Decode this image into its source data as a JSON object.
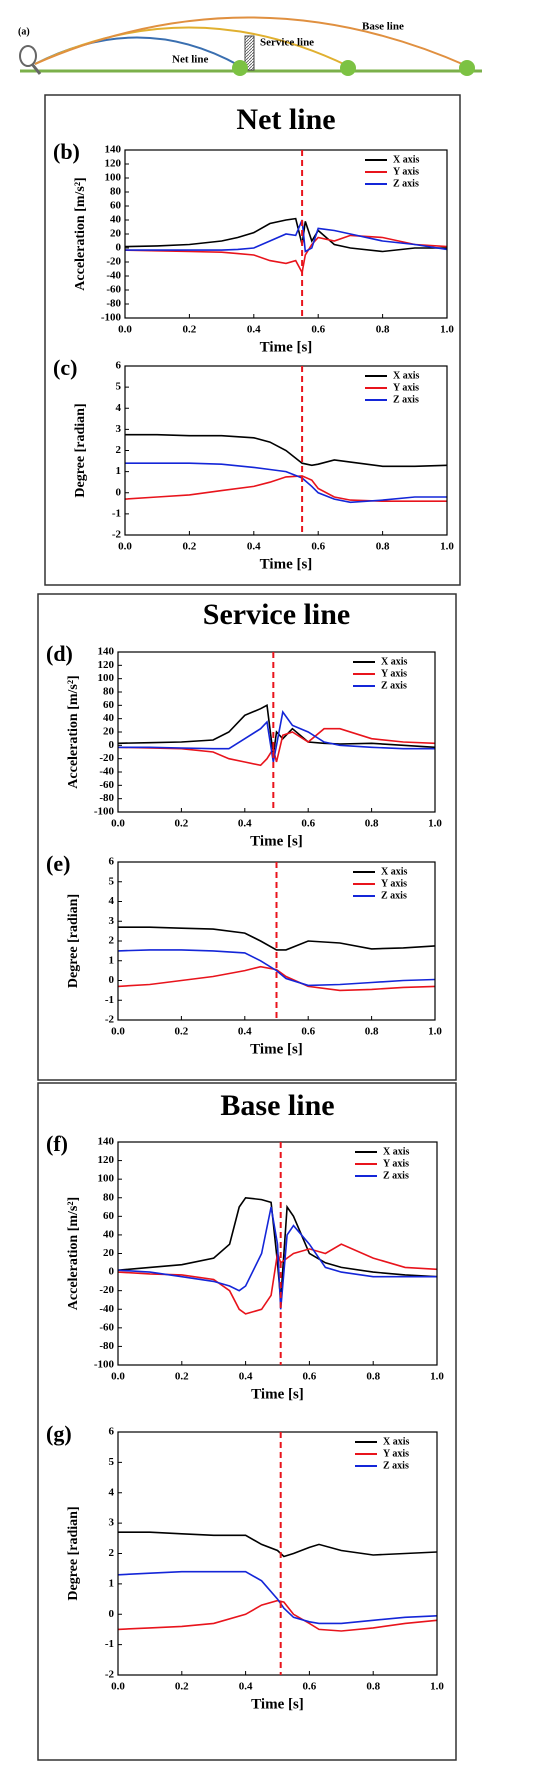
{
  "diagram": {
    "label": "(a)",
    "lines": [
      "Net line",
      "Service line",
      "Base line"
    ]
  },
  "chart_data": [
    {
      "type": "line",
      "title": "Net line",
      "panel_label": "(b)",
      "ylabel": "Acceleration [m/s²]",
      "xlabel": "Time [s]",
      "xlim": [
        0,
        1
      ],
      "xticks": [
        {
          "value": 0,
          "label": "0.0"
        },
        0.2,
        0.4,
        0.6,
        0.8,
        {
          "value": 1,
          "label": "1.0"
        }
      ],
      "ylim": [
        -100,
        140
      ],
      "yticks": [
        -100,
        -80,
        -60,
        -40,
        -20,
        0,
        20,
        40,
        60,
        80,
        100,
        120,
        140
      ],
      "vline_x": 0.55,
      "x": [
        0,
        0.1,
        0.2,
        0.3,
        0.35,
        0.4,
        0.45,
        0.5,
        0.53,
        0.55,
        0.56,
        0.58,
        0.6,
        0.65,
        0.7,
        0.8,
        0.9,
        1.0
      ],
      "series": [
        {
          "name": "X axis",
          "color": "#000000",
          "values": [
            2,
            3,
            5,
            10,
            15,
            22,
            35,
            40,
            42,
            5,
            38,
            10,
            25,
            5,
            0,
            -5,
            0,
            0
          ]
        },
        {
          "name": "Y axis",
          "color": "#e8141c",
          "values": [
            -3,
            -4,
            -5,
            -6,
            -8,
            -10,
            -18,
            -22,
            -18,
            -35,
            -10,
            5,
            15,
            10,
            18,
            15,
            5,
            2
          ]
        },
        {
          "name": "Z axis",
          "color": "#1426d8",
          "values": [
            -3,
            -3,
            -3,
            -3,
            -2,
            0,
            10,
            20,
            18,
            40,
            -5,
            0,
            28,
            25,
            20,
            10,
            5,
            -2
          ]
        }
      ]
    },
    {
      "type": "line",
      "panel_label": "(c)",
      "ylabel": "Degree [radian]",
      "xlabel": "Time [s]",
      "xlim": [
        0,
        1
      ],
      "xticks": [
        {
          "value": 0,
          "label": "0.0"
        },
        0.2,
        0.4,
        0.6,
        0.8,
        {
          "value": 1,
          "label": "1.0"
        }
      ],
      "ylim": [
        -2,
        6
      ],
      "yticks": [
        -2,
        -1,
        0,
        1,
        2,
        3,
        4,
        5,
        6
      ],
      "vline_x": 0.55,
      "x": [
        0,
        0.1,
        0.2,
        0.3,
        0.4,
        0.45,
        0.5,
        0.55,
        0.58,
        0.6,
        0.65,
        0.7,
        0.8,
        0.9,
        1.0
      ],
      "series": [
        {
          "name": "X axis",
          "color": "#000000",
          "values": [
            2.75,
            2.75,
            2.7,
            2.7,
            2.6,
            2.4,
            2.0,
            1.4,
            1.3,
            1.35,
            1.55,
            1.45,
            1.25,
            1.25,
            1.3
          ]
        },
        {
          "name": "Y axis",
          "color": "#e8141c",
          "values": [
            -0.3,
            -0.2,
            -0.1,
            0.1,
            0.3,
            0.5,
            0.75,
            0.8,
            0.6,
            0.2,
            -0.2,
            -0.35,
            -0.4,
            -0.4,
            -0.4
          ]
        },
        {
          "name": "Z axis",
          "color": "#1426d8",
          "values": [
            1.4,
            1.4,
            1.4,
            1.35,
            1.2,
            1.1,
            1.0,
            0.7,
            0.3,
            0.0,
            -0.3,
            -0.45,
            -0.35,
            -0.2,
            -0.2
          ]
        }
      ]
    },
    {
      "type": "line",
      "title": "Service line",
      "panel_label": "(d)",
      "ylabel": "Acceleration [m/s²]",
      "xlabel": "Time [s]",
      "xlim": [
        0,
        1
      ],
      "xticks": [
        {
          "value": 0,
          "label": "0.0"
        },
        0.2,
        0.4,
        0.6,
        0.8,
        {
          "value": 1,
          "label": "1.0"
        }
      ],
      "ylim": [
        -100,
        140
      ],
      "yticks": [
        -100,
        -80,
        -60,
        -40,
        -20,
        0,
        20,
        40,
        60,
        80,
        100,
        120,
        140
      ],
      "vline_x": 0.49,
      "x": [
        0,
        0.1,
        0.2,
        0.3,
        0.35,
        0.4,
        0.45,
        0.47,
        0.49,
        0.5,
        0.52,
        0.55,
        0.6,
        0.65,
        0.7,
        0.8,
        0.9,
        1.0
      ],
      "series": [
        {
          "name": "X axis",
          "color": "#000000",
          "values": [
            3,
            4,
            5,
            8,
            20,
            45,
            55,
            60,
            -15,
            20,
            10,
            25,
            5,
            3,
            2,
            3,
            0,
            -3
          ]
        },
        {
          "name": "Y axis",
          "color": "#e8141c",
          "values": [
            -3,
            -4,
            -5,
            -10,
            -20,
            -25,
            -30,
            -20,
            -5,
            -25,
            15,
            20,
            5,
            25,
            25,
            10,
            5,
            3
          ]
        },
        {
          "name": "Z axis",
          "color": "#1426d8",
          "values": [
            -3,
            -3,
            -4,
            -5,
            -5,
            10,
            25,
            35,
            -25,
            0,
            50,
            30,
            20,
            5,
            0,
            -3,
            -5,
            -5
          ]
        }
      ]
    },
    {
      "type": "line",
      "panel_label": "(e)",
      "ylabel": "Degree [radian]",
      "xlabel": "Time [s]",
      "xlim": [
        0,
        1
      ],
      "xticks": [
        {
          "value": 0,
          "label": "0.0"
        },
        0.2,
        0.4,
        0.6,
        0.8,
        {
          "value": 1,
          "label": "1.0"
        }
      ],
      "ylim": [
        -2,
        6
      ],
      "yticks": [
        -2,
        -1,
        0,
        1,
        2,
        3,
        4,
        5,
        6
      ],
      "vline_x": 0.5,
      "x": [
        0,
        0.1,
        0.2,
        0.3,
        0.4,
        0.45,
        0.5,
        0.53,
        0.6,
        0.7,
        0.8,
        0.9,
        1.0
      ],
      "series": [
        {
          "name": "X axis",
          "color": "#000000",
          "values": [
            2.7,
            2.7,
            2.65,
            2.6,
            2.4,
            2.0,
            1.55,
            1.55,
            2.0,
            1.9,
            1.6,
            1.65,
            1.75
          ]
        },
        {
          "name": "Y axis",
          "color": "#e8141c",
          "values": [
            -0.3,
            -0.2,
            0,
            0.2,
            0.5,
            0.7,
            0.55,
            0.2,
            -0.3,
            -0.5,
            -0.45,
            -0.35,
            -0.3
          ]
        },
        {
          "name": "Z axis",
          "color": "#1426d8",
          "values": [
            1.5,
            1.55,
            1.55,
            1.5,
            1.4,
            1.0,
            0.5,
            0.1,
            -0.25,
            -0.2,
            -0.1,
            0.0,
            0.05
          ]
        }
      ]
    },
    {
      "type": "line",
      "title": "Base line",
      "panel_label": "(f)",
      "ylabel": "Acceleration [m/s²]",
      "xlabel": "Time [s]",
      "xlim": [
        0,
        1
      ],
      "xticks": [
        {
          "value": 0,
          "label": "0.0"
        },
        0.2,
        0.4,
        0.6,
        0.8,
        {
          "value": 1,
          "label": "1.0"
        }
      ],
      "ylim": [
        -100,
        140
      ],
      "yticks": [
        -100,
        -80,
        -60,
        -40,
        -20,
        0,
        20,
        40,
        60,
        80,
        100,
        120,
        140
      ],
      "vline_x": 0.51,
      "x": [
        0,
        0.1,
        0.2,
        0.3,
        0.35,
        0.38,
        0.4,
        0.45,
        0.48,
        0.5,
        0.51,
        0.53,
        0.55,
        0.6,
        0.65,
        0.7,
        0.8,
        0.9,
        1.0
      ],
      "series": [
        {
          "name": "X axis",
          "color": "#000000",
          "values": [
            2,
            5,
            8,
            15,
            30,
            70,
            80,
            78,
            75,
            10,
            -30,
            70,
            60,
            20,
            10,
            5,
            0,
            -3,
            -5
          ]
        },
        {
          "name": "Y axis",
          "color": "#e8141c",
          "values": [
            0,
            -2,
            -3,
            -8,
            -20,
            -40,
            -45,
            -40,
            -25,
            20,
            10,
            15,
            20,
            25,
            20,
            30,
            15,
            5,
            3
          ]
        },
        {
          "name": "Z axis",
          "color": "#1426d8",
          "values": [
            2,
            0,
            -5,
            -10,
            -15,
            -20,
            -15,
            20,
            70,
            30,
            -40,
            40,
            50,
            30,
            5,
            0,
            -5,
            -5,
            -5
          ]
        }
      ]
    },
    {
      "type": "line",
      "panel_label": "(g)",
      "ylabel": "Degree [radian]",
      "xlabel": "Time [s]",
      "xlim": [
        0,
        1
      ],
      "xticks": [
        {
          "value": 0,
          "label": "0.0"
        },
        0.2,
        0.4,
        0.6,
        0.8,
        {
          "value": 1,
          "label": "1.0"
        }
      ],
      "ylim": [
        -2,
        6
      ],
      "yticks": [
        -2,
        -1,
        0,
        1,
        2,
        3,
        4,
        5,
        6
      ],
      "vline_x": 0.51,
      "x": [
        0,
        0.1,
        0.2,
        0.3,
        0.4,
        0.45,
        0.5,
        0.52,
        0.55,
        0.6,
        0.63,
        0.7,
        0.8,
        0.9,
        1.0
      ],
      "series": [
        {
          "name": "X axis",
          "color": "#000000",
          "values": [
            2.7,
            2.7,
            2.65,
            2.6,
            2.6,
            2.3,
            2.1,
            1.9,
            2.0,
            2.2,
            2.3,
            2.1,
            1.95,
            2.0,
            2.05
          ]
        },
        {
          "name": "Y axis",
          "color": "#e8141c",
          "values": [
            -0.5,
            -0.45,
            -0.4,
            -0.3,
            0,
            0.3,
            0.45,
            0.4,
            0.0,
            -0.3,
            -0.5,
            -0.55,
            -0.45,
            -0.3,
            -0.2
          ]
        },
        {
          "name": "Z axis",
          "color": "#1426d8",
          "values": [
            1.3,
            1.35,
            1.4,
            1.4,
            1.4,
            1.1,
            0.5,
            0.2,
            -0.1,
            -0.25,
            -0.3,
            -0.3,
            -0.2,
            -0.1,
            -0.05
          ]
        }
      ]
    }
  ]
}
